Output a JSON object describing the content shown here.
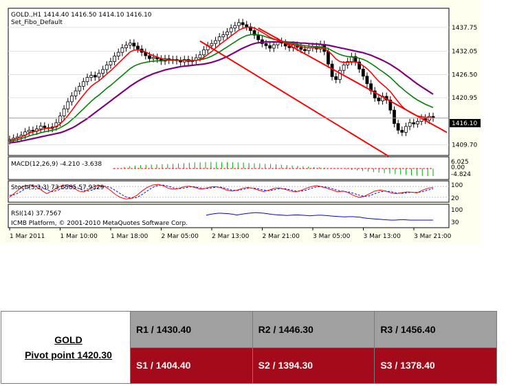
{
  "chart_header": {
    "line1": "GOLD.,H1  1414.40 1416.50 1414.10 1416.10",
    "line2": "Set_Fibo_Default",
    "watermark": "ICMB Platform, © 2001-2010 MetaQuotes Software Corp."
  },
  "indicators": {
    "macd": "MACD(12,26,9) -4.210 -3.638",
    "stoch": "Stoch(5,3,3) 73.6585 57.9329",
    "rsi": "RSI(14) 37.7567"
  },
  "colors": {
    "chart_bg": "#fffff0",
    "ma_fast": "#ff0000",
    "ma_mid": "#008000",
    "ma_slow": "#800080",
    "channel": "#ff0000",
    "macd_hist": "#00aa00",
    "stoch_main": "#ff0000",
    "stoch_signal": "#0000ff",
    "rsi_line": "#0000ff",
    "resistance_bg": "#a0a0a0",
    "support_bg": "#a30a1a"
  },
  "chart_data": {
    "type": "candlestick",
    "instrument": "GOLD.",
    "timeframe": "H1",
    "last_price": "1416.10",
    "y_ticks": [
      "1437.75",
      "1432.05",
      "1426.50",
      "1420.95",
      "1409.70"
    ],
    "ylim": [
      1407.5,
      1442.0
    ],
    "x_ticks": [
      "1 Mar 2011",
      "1 Mar 10:00",
      "1 Mar 18:00",
      "2 Mar 05:00",
      "2 Mar 13:00",
      "2 Mar 21:00",
      "3 Mar 05:00",
      "3 Mar 13:00",
      "3 Mar 21:00"
    ],
    "closes": [
      1411.0,
      1411.3,
      1411.6,
      1412.0,
      1412.8,
      1413.2,
      1413.0,
      1413.5,
      1414.2,
      1413.8,
      1413.6,
      1414.0,
      1415.0,
      1416.6,
      1418.3,
      1420.0,
      1421.4,
      1422.6,
      1423.7,
      1424.8,
      1425.8,
      1426.3,
      1425.9,
      1426.8,
      1427.7,
      1428.8,
      1429.6,
      1430.9,
      1431.8,
      1432.9,
      1433.5,
      1434.0,
      1433.3,
      1432.6,
      1431.8,
      1431.0,
      1430.3,
      1430.6,
      1430.2,
      1429.7,
      1430.3,
      1429.9,
      1430.1,
      1429.8,
      1429.5,
      1430.1,
      1429.6,
      1429.9,
      1430.5,
      1431.2,
      1432.4,
      1433.4,
      1433.9,
      1434.6,
      1435.5,
      1436.0,
      1436.7,
      1437.6,
      1438.2,
      1438.9,
      1438.4,
      1437.9,
      1437.0,
      1435.9,
      1434.8,
      1433.9,
      1433.4,
      1432.8,
      1433.6,
      1434.4,
      1434.0,
      1433.3,
      1432.9,
      1433.5,
      1433.0,
      1432.5,
      1432.2,
      1432.9,
      1433.2,
      1432.6,
      1433.7,
      1432.0,
      1429.0,
      1426.0,
      1425.3,
      1427.5,
      1428.8,
      1429.6,
      1430.8,
      1429.5,
      1427.8,
      1426.1,
      1424.3,
      1422.6,
      1420.9,
      1420.2,
      1421.3,
      1420.4,
      1418.0,
      1414.8,
      1413.2,
      1412.7,
      1414.1,
      1415.0,
      1414.7,
      1415.3,
      1416.1,
      1415.6,
      1416.5,
      1416.1
    ],
    "ma_fast": [
      1410.8,
      1411.0,
      1411.3,
      1411.6,
      1412.0,
      1412.5,
      1412.8,
      1413.0,
      1413.3,
      1413.6,
      1413.7,
      1413.8,
      1414.1,
      1414.7,
      1415.6,
      1416.7,
      1417.9,
      1419.2,
      1420.4,
      1421.6,
      1422.7,
      1423.7,
      1424.4,
      1425.0,
      1425.8,
      1426.6,
      1427.4,
      1428.3,
      1429.2,
      1430.1,
      1431.0,
      1431.9,
      1432.3,
      1432.4,
      1432.2,
      1431.9,
      1431.4,
      1431.0,
      1430.7,
      1430.3,
      1430.2,
      1430.1,
      1430.0,
      1429.9,
      1429.9,
      1429.9,
      1429.8,
      1429.8,
      1429.9,
      1430.1,
      1430.6,
      1431.3,
      1432.0,
      1432.8,
      1433.6,
      1434.3,
      1435.0,
      1435.7,
      1436.4,
      1437.1,
      1437.5,
      1437.8,
      1437.8,
      1437.6,
      1437.1,
      1436.6,
      1436.0,
      1435.4,
      1435.0,
      1434.7,
      1434.4,
      1434.1,
      1433.8,
      1433.6,
      1433.4,
      1433.2,
      1433.0,
      1432.9,
      1432.9,
      1432.8,
      1432.9,
      1432.7,
      1432.1,
      1431.2,
      1430.2,
      1429.6,
      1429.4,
      1429.4,
      1429.5,
      1429.5,
      1429.2,
      1428.6,
      1427.9,
      1427.0,
      1425.9,
      1424.9,
      1424.1,
      1423.3,
      1422.4,
      1421.2,
      1420.0,
      1418.9,
      1418.1,
      1417.5,
      1417.0,
      1416.6,
      1416.4,
      1416.3,
      1416.2,
      1416.1
    ],
    "ma_mid": [
      1410.5,
      1410.7,
      1410.9,
      1411.2,
      1411.5,
      1411.8,
      1412.1,
      1412.3,
      1412.6,
      1412.8,
      1413.0,
      1413.2,
      1413.4,
      1413.8,
      1414.3,
      1414.9,
      1415.7,
      1416.5,
      1417.4,
      1418.3,
      1419.2,
      1420.1,
      1420.9,
      1421.6,
      1422.4,
      1423.2,
      1423.9,
      1424.7,
      1425.5,
      1426.3,
      1427.1,
      1427.9,
      1428.5,
      1428.9,
      1429.2,
      1429.4,
      1429.6,
      1429.7,
      1429.8,
      1429.8,
      1429.9,
      1429.9,
      1429.9,
      1429.9,
      1429.9,
      1429.9,
      1429.9,
      1429.9,
      1429.9,
      1430.0,
      1430.2,
      1430.5,
      1430.9,
      1431.4,
      1431.9,
      1432.5,
      1433.1,
      1433.7,
      1434.3,
      1434.9,
      1435.4,
      1435.8,
      1436.0,
      1436.1,
      1436.0,
      1435.8,
      1435.5,
      1435.2,
      1434.9,
      1434.7,
      1434.5,
      1434.3,
      1434.1,
      1433.9,
      1433.7,
      1433.5,
      1433.4,
      1433.3,
      1433.2,
      1433.1,
      1433.1,
      1433.0,
      1432.7,
      1432.2,
      1431.7,
      1431.3,
      1431.0,
      1430.8,
      1430.7,
      1430.6,
      1430.4,
      1430.1,
      1429.7,
      1429.1,
      1428.5,
      1427.8,
      1427.2,
      1426.5,
      1425.8,
      1424.9,
      1424.0,
      1423.2,
      1422.4,
      1421.7,
      1421.0,
      1420.4,
      1419.9,
      1419.4,
      1419.0,
      1418.6
    ],
    "ma_slow": [
      1410.2,
      1410.3,
      1410.4,
      1410.6,
      1410.8,
      1411.0,
      1411.2,
      1411.4,
      1411.6,
      1411.8,
      1412.0,
      1412.2,
      1412.4,
      1412.6,
      1412.9,
      1413.3,
      1413.7,
      1414.2,
      1414.8,
      1415.4,
      1416.0,
      1416.7,
      1417.4,
      1418.1,
      1418.8,
      1419.5,
      1420.2,
      1420.9,
      1421.6,
      1422.3,
      1423.0,
      1423.7,
      1424.3,
      1424.9,
      1425.4,
      1425.9,
      1426.3,
      1426.7,
      1427.0,
      1427.3,
      1427.6,
      1427.8,
      1428.0,
      1428.2,
      1428.4,
      1428.5,
      1428.6,
      1428.7,
      1428.8,
      1428.9,
      1429.0,
      1429.2,
      1429.4,
      1429.7,
      1430.0,
      1430.4,
      1430.8,
      1431.3,
      1431.8,
      1432.3,
      1432.8,
      1433.2,
      1433.6,
      1433.9,
      1434.1,
      1434.2,
      1434.3,
      1434.3,
      1434.3,
      1434.3,
      1434.3,
      1434.3,
      1434.2,
      1434.2,
      1434.1,
      1434.0,
      1434.0,
      1433.9,
      1433.8,
      1433.8,
      1433.7,
      1433.6,
      1433.5,
      1433.3,
      1433.1,
      1432.9,
      1432.7,
      1432.5,
      1432.3,
      1432.1,
      1431.9,
      1431.7,
      1431.4,
      1431.1,
      1430.7,
      1430.3,
      1429.9,
      1429.4,
      1428.9,
      1428.3,
      1427.7,
      1427.0,
      1426.3,
      1425.6,
      1424.9,
      1424.2,
      1423.6,
      1423.0,
      1422.4,
      1421.8
    ],
    "channel_upper": [
      [
        1437.6,
        64
      ],
      [
        1414.5,
        109
      ]
    ],
    "channel_lower": [
      [
        1434.5,
        49
      ],
      [
        1409.0,
        94
      ]
    ],
    "macd_hist": [
      -0.4,
      0.2,
      0.8,
      1.3,
      1.6,
      1.9,
      2.1,
      2.2,
      2.3,
      2.4,
      2.5,
      2.6,
      2.8,
      3.0,
      3.2,
      3.4,
      3.5,
      3.6,
      3.7,
      3.7,
      3.6,
      3.6,
      3.5,
      3.4,
      3.3,
      3.1,
      2.9,
      2.8,
      2.6,
      2.5,
      2.3,
      2.1,
      1.9,
      1.7,
      1.5,
      1.3,
      1.1,
      0.8,
      0.6,
      0.4,
      0.2,
      0.0,
      -0.2,
      -0.5,
      -0.8,
      -1.1,
      -1.4,
      -1.7,
      -2.0,
      -2.3,
      -2.6,
      -2.9,
      -3.2,
      -3.4,
      -3.6,
      -3.8,
      -4.0,
      -4.1,
      -4.2,
      -4.2
    ],
    "stoch_main": [
      20,
      45,
      70,
      85,
      88,
      80,
      60,
      40,
      55,
      75,
      85,
      90,
      75,
      55,
      50,
      65,
      80,
      86,
      80,
      60,
      35,
      18,
      10,
      15,
      30,
      55,
      75,
      88,
      92,
      85,
      70,
      65,
      70,
      80,
      82,
      75,
      65,
      70,
      78,
      80,
      72,
      60,
      55,
      60,
      70,
      75,
      70,
      60,
      52,
      60,
      70,
      72,
      65,
      55,
      50,
      58,
      70,
      80,
      85,
      78,
      70,
      60,
      50,
      55,
      45,
      30,
      20,
      25,
      40,
      55,
      60,
      55,
      45,
      40,
      45,
      50,
      48,
      45,
      60,
      70,
      75
    ],
    "stoch_signal": [
      30,
      35,
      50,
      68,
      80,
      84,
      78,
      62,
      52,
      58,
      70,
      82,
      82,
      70,
      58,
      55,
      65,
      77,
      82,
      75,
      58,
      38,
      22,
      15,
      18,
      35,
      55,
      75,
      86,
      88,
      82,
      72,
      68,
      72,
      78,
      79,
      72,
      68,
      72,
      77,
      76,
      68,
      60,
      58,
      63,
      70,
      72,
      67,
      60,
      57,
      62,
      68,
      68,
      62,
      55,
      54,
      60,
      70,
      78,
      80,
      76,
      68,
      58,
      53,
      50,
      42,
      32,
      25,
      28,
      40,
      50,
      55,
      52,
      45,
      42,
      45,
      48,
      47,
      52,
      60,
      68
    ],
    "rsi": [
      55,
      58,
      60,
      62,
      62,
      61,
      60,
      58,
      56,
      58,
      60,
      62,
      63,
      64,
      63,
      62,
      60,
      58,
      57,
      56,
      55,
      54,
      55,
      56,
      56,
      55,
      54,
      53,
      54,
      55,
      55,
      54,
      53,
      52,
      51,
      50,
      49,
      50,
      50,
      49,
      48,
      46,
      44,
      43,
      42,
      41,
      40,
      39,
      38,
      38,
      39,
      40,
      39,
      38,
      38,
      38,
      38,
      38,
      38,
      38
    ]
  },
  "pivot": {
    "name": "GOLD",
    "pivot_label": "Pivot point 1420.30",
    "resistances": [
      "R1 / 1430.40",
      "R2 / 1446.30",
      "R3 / 1456.40"
    ],
    "supports": [
      "S1 / 1404.40",
      "S2 / 1394.30",
      "S3 / 1378.40"
    ]
  }
}
